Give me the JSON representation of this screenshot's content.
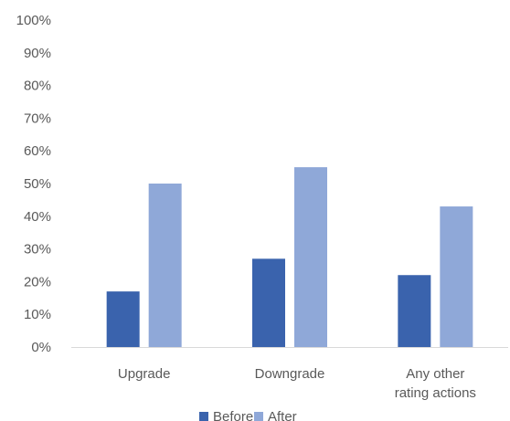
{
  "chart_data": {
    "type": "bar",
    "categories": [
      "Upgrade",
      "Downgrade",
      "Any other rating actions"
    ],
    "category_lines": [
      [
        "Upgrade"
      ],
      [
        "Downgrade"
      ],
      [
        "Any other",
        "rating actions"
      ]
    ],
    "series": [
      {
        "name": "Before",
        "values": [
          17,
          27,
          22
        ],
        "color": "#3A63AD"
      },
      {
        "name": "After",
        "values": [
          50,
          55,
          43
        ],
        "color": "#8FA8D8"
      }
    ],
    "ylim": [
      0,
      100
    ],
    "yticks": [
      0,
      10,
      20,
      30,
      40,
      50,
      60,
      70,
      80,
      90,
      100
    ],
    "ytick_labels": [
      "0%",
      "10%",
      "20%",
      "30%",
      "40%",
      "50%",
      "60%",
      "70%",
      "80%",
      "90%",
      "100%"
    ],
    "grid": false,
    "legend": "bottom",
    "title": "",
    "xlabel": "",
    "ylabel": ""
  }
}
